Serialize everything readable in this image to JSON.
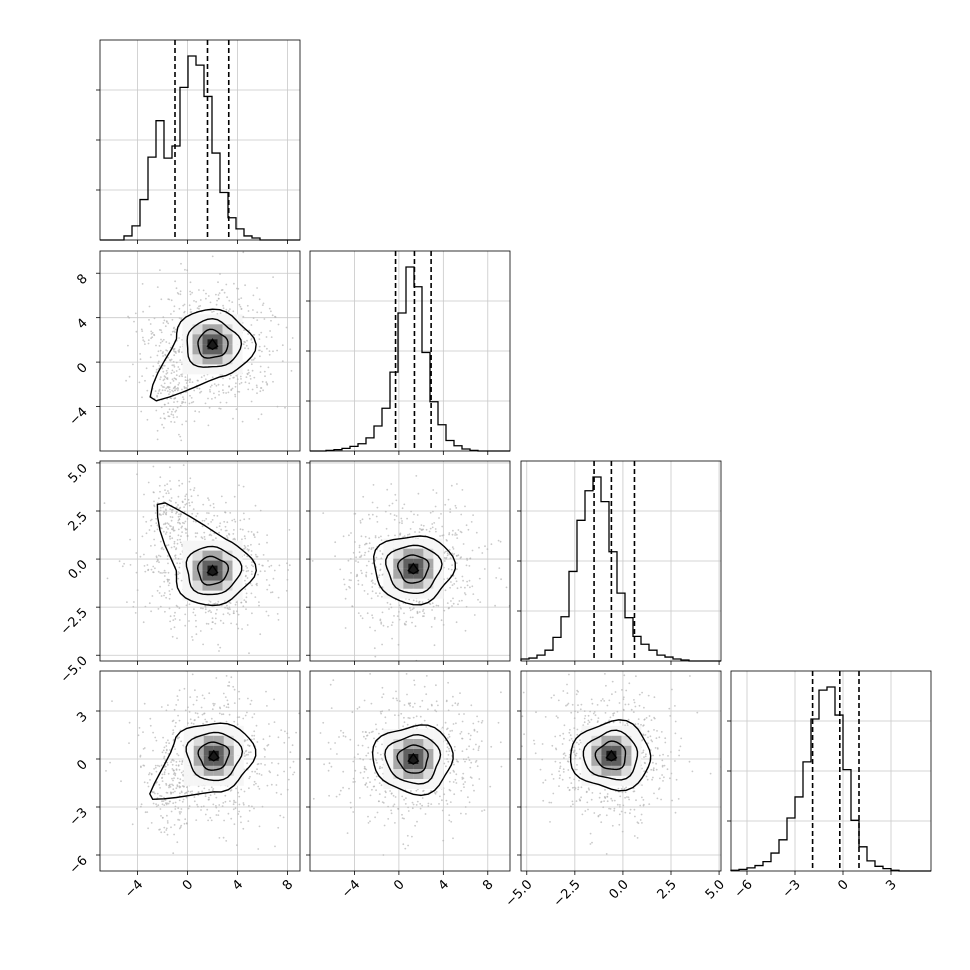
{
  "chart_data": {
    "type": "corner",
    "parameters": 4,
    "title": "",
    "grid": true,
    "histograms": [
      {
        "name": "hist-p1",
        "range": [
          -7,
          9
        ],
        "bins": 25,
        "counts": [
          0,
          0,
          0,
          4,
          14,
          40,
          82,
          118,
          81,
          93,
          151,
          182,
          173,
          142,
          86,
          47,
          22,
          11,
          4,
          2,
          0,
          0,
          0,
          0,
          0
        ],
        "quantiles": [
          -1.0,
          1.6,
          3.3
        ]
      },
      {
        "name": "hist-p2",
        "range": [
          -8,
          10
        ],
        "bins": 25,
        "counts": [
          0,
          0,
          1,
          2,
          4,
          7,
          11,
          20,
          38,
          65,
          120,
          210,
          280,
          250,
          150,
          75,
          40,
          16,
          8,
          3,
          1,
          0,
          0,
          0,
          0
        ],
        "quantiles": [
          -0.3,
          1.4,
          2.9
        ]
      },
      {
        "name": "hist-p3",
        "range": [
          -5.3,
          5.1
        ],
        "bins": 25,
        "counts": [
          2,
          3,
          6,
          11,
          24,
          45,
          91,
          143,
          173,
          187,
          162,
          111,
          69,
          44,
          25,
          17,
          11,
          6,
          4,
          2,
          1,
          0,
          0,
          0,
          0
        ],
        "quantiles": [
          -1.5,
          -0.6,
          0.6
        ]
      },
      {
        "name": "hist-p4",
        "range": [
          -7,
          5.5
        ],
        "bins": 25,
        "counts": [
          1,
          2,
          4,
          7,
          12,
          23,
          40,
          68,
          95,
          140,
          195,
          232,
          236,
          200,
          130,
          65,
          31,
          13,
          6,
          3,
          1,
          0,
          0,
          0,
          0
        ],
        "quantiles": [
          -1.9,
          -0.2,
          1.0
        ]
      }
    ],
    "panels": [
      {
        "row": 1,
        "col": 0,
        "name": "panel-p2-vs-p1",
        "xrange": [
          -7,
          9
        ],
        "yrange": [
          -8,
          10
        ],
        "peak": [
          2.0,
          1.6
        ],
        "tail": [
          -1.4,
          -2.2
        ]
      },
      {
        "row": 2,
        "col": 0,
        "name": "panel-p3-vs-p1",
        "xrange": [
          -7,
          9
        ],
        "yrange": [
          -5.3,
          5.1
        ],
        "peak": [
          2.0,
          -0.6
        ],
        "tail": [
          -1.2,
          2.3
        ]
      },
      {
        "row": 2,
        "col": 1,
        "name": "panel-p3-vs-p2",
        "xrange": [
          -8,
          10
        ],
        "yrange": [
          -5.3,
          5.1
        ],
        "peak": [
          1.3,
          -0.5
        ],
        "tail": null
      },
      {
        "row": 3,
        "col": 0,
        "name": "panel-p4-vs-p1",
        "xrange": [
          -7,
          9
        ],
        "yrange": [
          -7,
          5.5
        ],
        "peak": [
          2.1,
          0.2
        ],
        "tail": [
          -1.5,
          -1.8
        ]
      },
      {
        "row": 3,
        "col": 1,
        "name": "panel-p4-vs-p2",
        "xrange": [
          -8,
          10
        ],
        "yrange": [
          -7,
          5.5
        ],
        "peak": [
          1.3,
          0.0
        ],
        "tail": null
      },
      {
        "row": 3,
        "col": 2,
        "name": "panel-p4-vs-p3",
        "xrange": [
          -5.3,
          5.1
        ],
        "yrange": [
          -7,
          5.5
        ],
        "peak": [
          -0.6,
          0.2
        ],
        "tail": null
      }
    ],
    "x_ticks": [
      {
        "col": 0,
        "values": [
          -4,
          0,
          4,
          8
        ],
        "labels": [
          "−4",
          "0",
          "4",
          "8"
        ]
      },
      {
        "col": 1,
        "values": [
          -4,
          0,
          4,
          8
        ],
        "labels": [
          "−4",
          "0",
          "4",
          "8"
        ]
      },
      {
        "col": 2,
        "values": [
          -5,
          -2.5,
          0,
          2.5,
          5
        ],
        "labels": [
          "−5.0",
          "−2.5",
          "0.0",
          "2.5",
          "5.0"
        ]
      },
      {
        "col": 3,
        "values": [
          -6,
          -3,
          0,
          3
        ],
        "labels": [
          "−6",
          "−3",
          "0",
          "3"
        ]
      }
    ],
    "y_ticks": [
      {
        "row": 1,
        "values": [
          -4,
          0,
          4,
          8
        ],
        "labels": [
          "−4",
          "0",
          "4",
          "8"
        ]
      },
      {
        "row": 2,
        "values": [
          -5,
          -2.5,
          0,
          2.5,
          5
        ],
        "labels": [
          "−5.0",
          "−2.5",
          "0.0",
          "2.5",
          "5.0"
        ]
      },
      {
        "row": 3,
        "values": [
          -6,
          -3,
          0,
          3
        ],
        "labels": [
          "−6",
          "−3",
          "0",
          "3"
        ]
      }
    ]
  }
}
